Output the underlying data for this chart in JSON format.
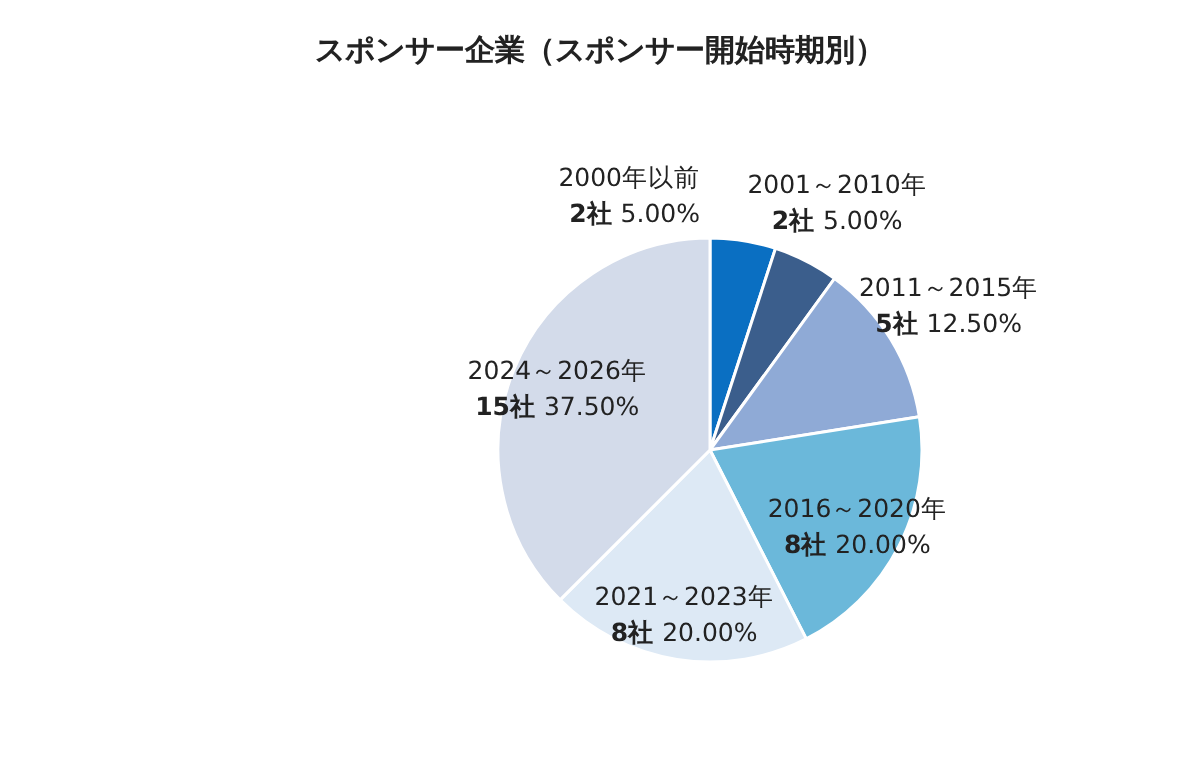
{
  "chart_data": {
    "type": "pie",
    "title": "スポンサー企業（スポンサー開始時期別）",
    "categories": [
      "2000年以前",
      "2001～2010年",
      "2011～2015年",
      "2016～2020年",
      "2021～2023年",
      "2024～2026年"
    ],
    "values": [
      2,
      2,
      5,
      8,
      8,
      15
    ],
    "value_labels": [
      "**2社** 5.00%",
      "**2社** 5.00%",
      "**5社** 12.50%",
      "**8社** 20.00%",
      "**8社** 20.00%",
      "**15社** 37.50%"
    ],
    "colors": [
      "#0a6fc2",
      "#3b5e8c",
      "#8faad6",
      "#6bb8da",
      "#dde9f5",
      "#d3dbea"
    ]
  }
}
